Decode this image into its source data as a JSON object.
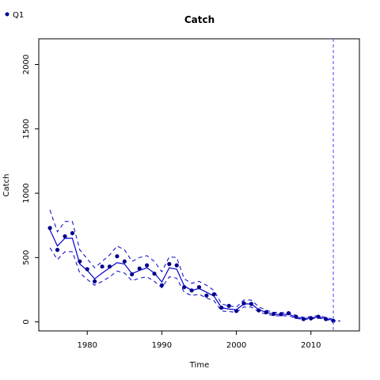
{
  "chart_data": {
    "type": "line",
    "title": "Catch",
    "xlabel": "Time",
    "ylabel": "Catch",
    "xlim": [
      1973.5,
      2016.5
    ],
    "ylim": [
      -70,
      2200
    ],
    "xticks": [
      1980,
      1990,
      2000,
      2010
    ],
    "yticks": [
      0,
      500,
      1000,
      1500,
      2000
    ],
    "grid": false,
    "legend": {
      "position": "top-left",
      "entries": [
        "Q1"
      ]
    },
    "colors": {
      "series": "#0000cc",
      "vline": "#6666ff",
      "observed": "#00008b"
    },
    "vline_x": 2013,
    "series": [
      {
        "name": "Q1",
        "x": [
          1975,
          1976,
          1977,
          1978,
          1979,
          1980,
          1981,
          1982,
          1983,
          1984,
          1985,
          1986,
          1987,
          1988,
          1989,
          1990,
          1991,
          1992,
          1993,
          1994,
          1995,
          1996,
          1997,
          1998,
          1999,
          2000,
          2001,
          2002,
          2003,
          2004,
          2005,
          2006,
          2007,
          2008,
          2009,
          2010,
          2011,
          2012,
          2013
        ],
        "fit": [
          715,
          590,
          650,
          650,
          450,
          400,
          335,
          380,
          420,
          460,
          450,
          375,
          400,
          420,
          380,
          310,
          420,
          410,
          280,
          245,
          260,
          230,
          200,
          110,
          100,
          95,
          140,
          140,
          95,
          75,
          60,
          58,
          60,
          38,
          25,
          32,
          38,
          25,
          12
        ],
        "lower": [
          575,
          485,
          545,
          545,
          380,
          330,
          285,
          315,
          350,
          395,
          380,
          320,
          340,
          350,
          315,
          265,
          350,
          340,
          230,
          205,
          215,
          185,
          165,
          85,
          80,
          75,
          115,
          115,
          78,
          60,
          48,
          46,
          48,
          28,
          18,
          24,
          30,
          18,
          6
        ],
        "upper": [
          870,
          700,
          780,
          780,
          560,
          490,
          420,
          470,
          520,
          590,
          560,
          470,
          500,
          515,
          470,
          390,
          505,
          500,
          335,
          300,
          315,
          285,
          245,
          140,
          125,
          115,
          170,
          170,
          118,
          90,
          75,
          72,
          75,
          50,
          35,
          42,
          50,
          35,
          20
        ],
        "observed": [
          730,
          560,
          665,
          690,
          470,
          410,
          315,
          430,
          430,
          510,
          470,
          370,
          415,
          440,
          375,
          285,
          450,
          440,
          270,
          245,
          270,
          205,
          215,
          110,
          125,
          85,
          145,
          140,
          90,
          75,
          62,
          60,
          68,
          40,
          22,
          28,
          40,
          22,
          8
        ]
      }
    ],
    "forecast": {
      "x": [
        2013,
        2014
      ],
      "y": [
        12,
        6
      ]
    }
  }
}
